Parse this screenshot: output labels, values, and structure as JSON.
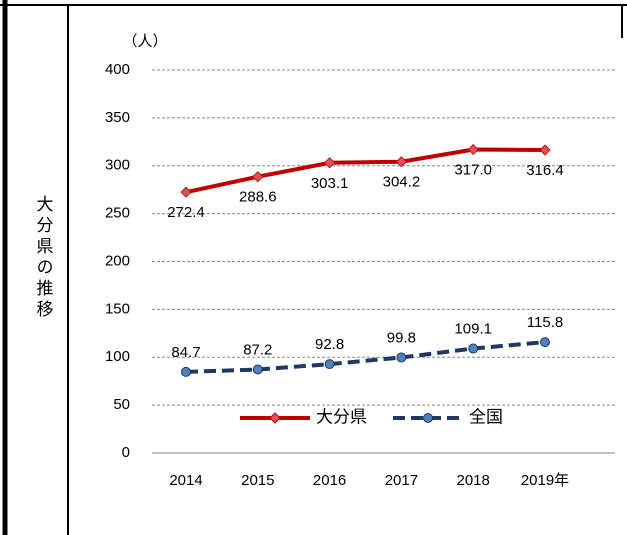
{
  "row_label": "大分県の推移",
  "chart_data": {
    "type": "line",
    "y_unit": "（人）",
    "categories": [
      "2014",
      "2015",
      "2016",
      "2017",
      "2018",
      "2019年"
    ],
    "series": [
      {
        "name": "大分県",
        "color": "#c00000",
        "marker": "diamond",
        "marker_color": "#e0505a",
        "dash": false,
        "values": [
          272.4,
          288.6,
          303.1,
          304.2,
          317.0,
          316.4
        ],
        "value_labels": [
          "272.4",
          "288.6",
          "303.1",
          "304.2",
          "317.0",
          "316.4"
        ],
        "label_position": "below"
      },
      {
        "name": "全国",
        "color": "#1f3864",
        "marker": "circle",
        "marker_color": "#4f81bd",
        "dash": true,
        "values": [
          84.7,
          87.2,
          92.8,
          99.8,
          109.1,
          115.8
        ],
        "value_labels": [
          "84.7",
          "87.2",
          "92.8",
          "99.8",
          "109.1",
          "115.8"
        ],
        "label_position": "above"
      }
    ],
    "ylim": [
      0,
      400
    ],
    "yticks": [
      0,
      50,
      100,
      150,
      200,
      250,
      300,
      350,
      400
    ],
    "grid": true,
    "legend": "bottom-center"
  }
}
